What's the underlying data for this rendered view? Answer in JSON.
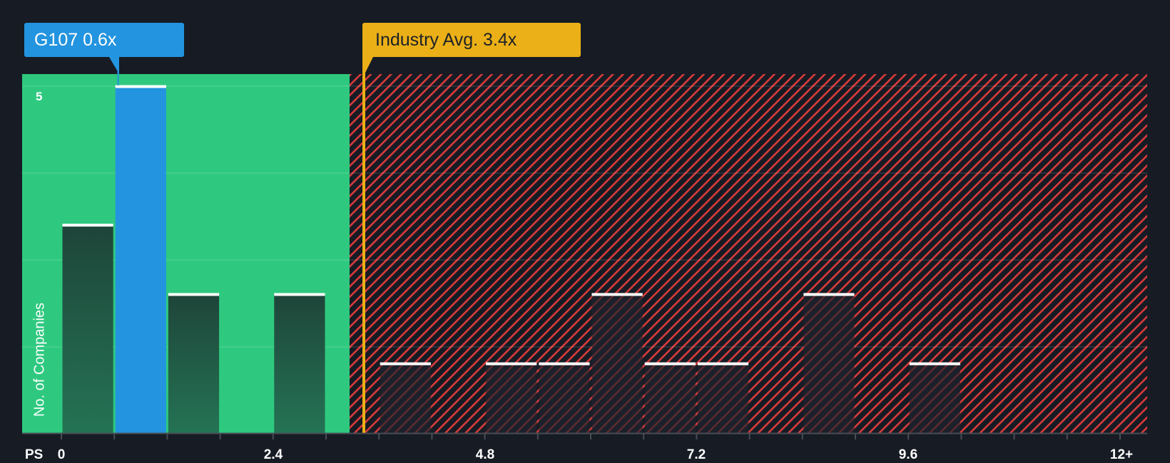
{
  "chart_data": {
    "type": "bar",
    "title": "",
    "xlabel": "PS",
    "ylabel": "No. of Companies",
    "x_tick_labels": [
      "0",
      "2.4",
      "4.8",
      "7.2",
      "9.6",
      "12+"
    ],
    "x_tick_values": [
      0,
      2.4,
      4.8,
      7.2,
      9.6,
      12
    ],
    "y_tick_labels": [
      "5"
    ],
    "ylim": [
      0,
      5
    ],
    "xlim": [
      0,
      12
    ],
    "bin_width": 0.6,
    "categories": [
      "0-0.6",
      "0.6-1.2",
      "1.2-1.8",
      "1.8-2.4",
      "2.4-3.0",
      "3.0-3.6",
      "3.6-4.2",
      "4.2-4.8",
      "4.8-5.4",
      "5.4-6.0",
      "6.0-6.6",
      "6.6-7.2",
      "7.2-7.8",
      "7.8-8.4",
      "8.4-9.0",
      "9.0-9.6",
      "9.6-10.2",
      "10.2-10.8",
      "10.8-11.4",
      "11.4-12+"
    ],
    "values": [
      3,
      5,
      2,
      0,
      2,
      0,
      1,
      0,
      1,
      1,
      2,
      1,
      1,
      0,
      2,
      0,
      1,
      0,
      0,
      0
    ],
    "highlight_bin_index": 1,
    "subject": {
      "name": "G107",
      "value": 0.6,
      "label": "G107 0.6x"
    },
    "industry_average": {
      "value": 3.4,
      "label": "Industry Avg. 3.4x"
    },
    "regions": [
      {
        "name": "below-average",
        "from": 0,
        "to": 3.27,
        "color": "#2ec97f"
      },
      {
        "name": "above-average",
        "from": 3.27,
        "to": 12,
        "color": "#d93b3b",
        "pattern": "diagonal-hatch"
      }
    ],
    "grid": true,
    "legend": "none"
  },
  "labels": {
    "subject": "G107 0.6x",
    "industry": "Industry Avg. 3.4x",
    "x_axis_name": "PS",
    "y_axis_title": "No. of Companies",
    "y_top_tick": "5",
    "x_ticks": [
      "0",
      "2.4",
      "4.8",
      "7.2",
      "9.6",
      "12+"
    ]
  },
  "colors": {
    "background": "#161b24",
    "good_region": "#2ec97f",
    "bad_hatch": "#d93b3b",
    "subject_bar": "#2394df",
    "industry_line": "#ebb017",
    "bar_dark_green": "#1f4a3c",
    "bar_dark": "#1c202a",
    "bar_cap": "#ffffff",
    "axis": "#474c55"
  }
}
